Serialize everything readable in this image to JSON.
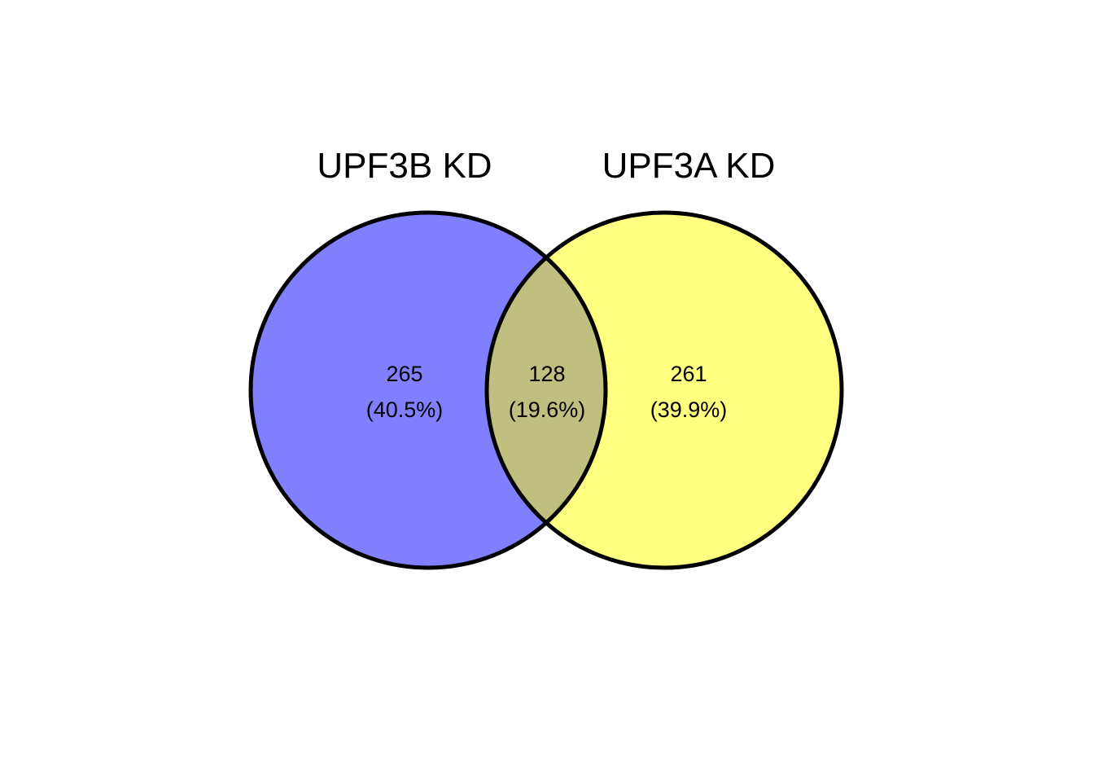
{
  "sets": [
    {
      "label": "UPF3B KD",
      "color": "#8080FF"
    },
    {
      "label": "UPF3A KD",
      "color": "#FFFF80"
    }
  ],
  "overlap_color": "#BFBF80",
  "regions": [
    {
      "id": "only-upf3b",
      "count": "265",
      "percent": "(40.5%)"
    },
    {
      "id": "both",
      "count": "128",
      "percent": "(19.6%)"
    },
    {
      "id": "only-upf3a",
      "count": "261",
      "percent": "(39.9%)"
    }
  ]
}
